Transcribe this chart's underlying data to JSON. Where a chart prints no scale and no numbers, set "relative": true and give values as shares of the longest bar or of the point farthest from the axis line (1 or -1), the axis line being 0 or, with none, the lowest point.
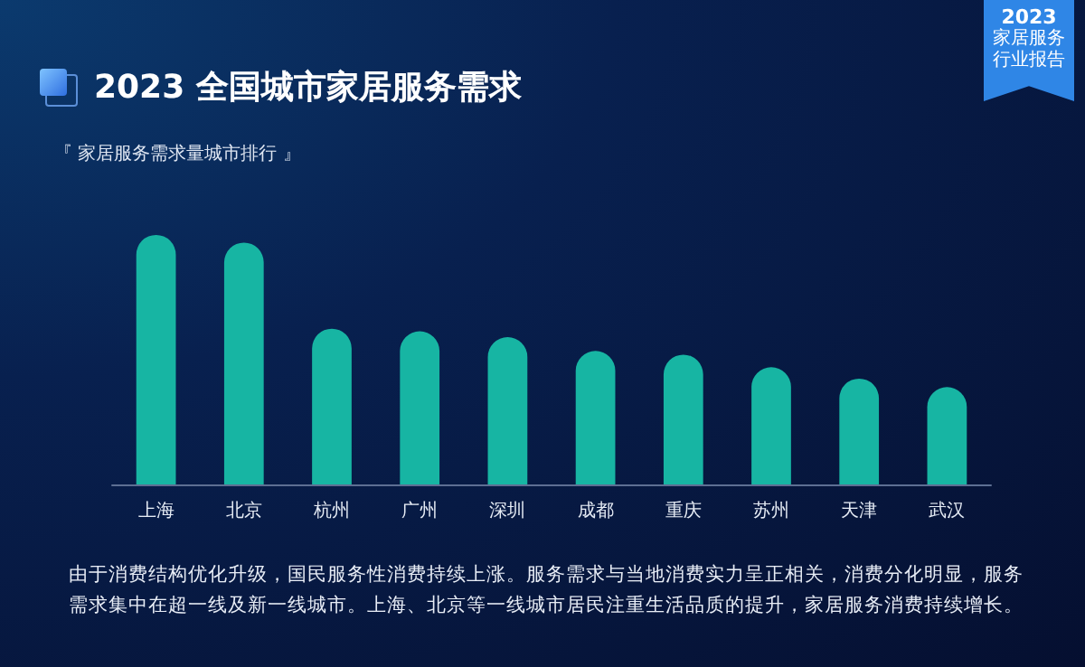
{
  "chart_data": {
    "type": "bar",
    "title": "2023 全国城市家居服务需求",
    "subtitle": "『 家居服务需求量城市排行 』",
    "categories": [
      "上海",
      "北京",
      "杭州",
      "广州",
      "深圳",
      "成都",
      "重庆",
      "苏州",
      "天津",
      "武汉"
    ],
    "values": [
      1,
      0.969,
      0.624,
      0.614,
      0.59,
      0.535,
      0.52,
      0.47,
      0.424,
      0.39
    ],
    "color": "#17b5a3",
    "relative": true,
    "annotations": [
      "由于消费结构优化升级，国民服务性消费持续上涨。服务需求与当地消费实力呈正相关，消费分化明显，服务需求集中在超一线及新一线城市。上海、北京等一线城市居民注重生活品质的提升，家居服务消费持续增长。",
      "2023",
      "家居服务行业报告"
    ]
  }
}
